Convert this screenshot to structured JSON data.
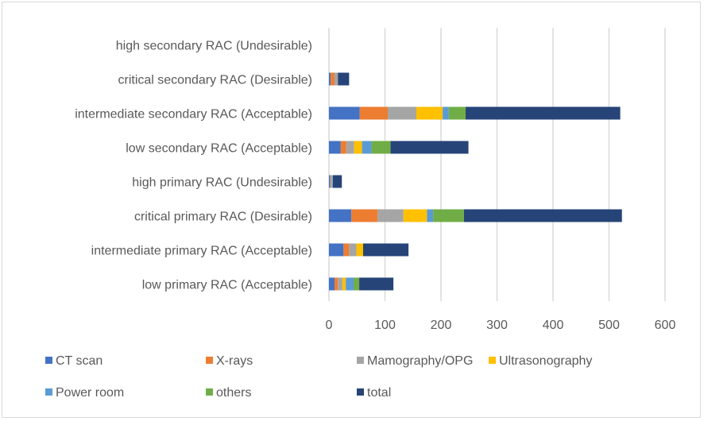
{
  "chart_data": {
    "type": "bar",
    "orientation": "horizontal",
    "stacked": true,
    "title": "",
    "xlabel": "",
    "ylabel": "",
    "xlim": [
      0,
      600
    ],
    "xticks": [
      "0",
      "100",
      "200",
      "300",
      "400",
      "500",
      "600"
    ],
    "grid": true,
    "legend_position": "bottom",
    "categories": [
      "low primary RAC (Acceptable)",
      "intermediate primary RAC (Acceptable)",
      "critical primary RAC (Desirable)",
      "high primary RAC (Undesirable)",
      "low secondary RAC (Acceptable)",
      "intermediate secondary RAC (Acceptable)",
      "critical secondary RAC (Desirable)",
      "high secondary RAC (Undesirable)"
    ],
    "series": [
      {
        "name": "CT scan",
        "color": "#4472C4",
        "values": [
          10,
          26,
          40,
          2,
          21,
          55,
          3,
          0
        ]
      },
      {
        "name": "X-rays",
        "color": "#ED7D31",
        "values": [
          6,
          10,
          47,
          1,
          10,
          50,
          7,
          0
        ]
      },
      {
        "name": "Mamography/OPG",
        "color": "#A5A5A5",
        "values": [
          8,
          13,
          46,
          3,
          14,
          51,
          6,
          0
        ]
      },
      {
        "name": "Ultrasonography",
        "color": "#FFC000",
        "values": [
          6,
          12,
          42,
          0,
          14,
          47,
          0,
          0
        ]
      },
      {
        "name": "Power room",
        "color": "#5B9BD5",
        "values": [
          14,
          0,
          11,
          1,
          17,
          11,
          0,
          0
        ]
      },
      {
        "name": "others",
        "color": "#70AD47",
        "values": [
          10,
          0,
          55,
          0,
          34,
          30,
          0,
          0
        ]
      },
      {
        "name": "total",
        "color": "#264478",
        "values": [
          61,
          81,
          282,
          16,
          139,
          276,
          20,
          0
        ]
      }
    ]
  }
}
